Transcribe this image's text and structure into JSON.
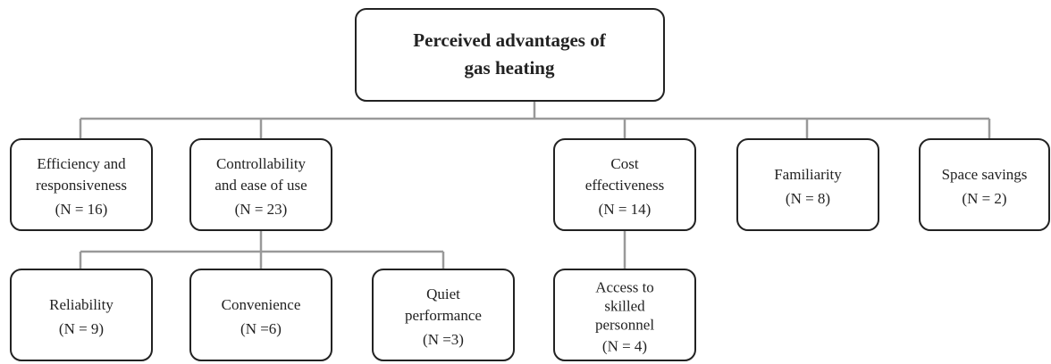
{
  "root": {
    "lines": [
      "Perceived advantages of",
      "gas heating"
    ]
  },
  "nodes": [
    {
      "lines": [
        "Efficiency and",
        "responsiveness"
      ],
      "count": "(N = 16)"
    },
    {
      "lines": [
        "Controllability",
        "and ease of use"
      ],
      "count": "(N = 23)"
    },
    {
      "lines": [
        "Cost",
        "effectiveness"
      ],
      "count": "(N = 14)"
    },
    {
      "lines": [
        "Familiarity"
      ],
      "count": "(N = 8)"
    },
    {
      "lines": [
        "Space savings"
      ],
      "count": "(N = 2)"
    },
    {
      "lines": [
        "Reliability"
      ],
      "count": "(N = 9)"
    },
    {
      "lines": [
        "Convenience"
      ],
      "count": "(N =6)"
    },
    {
      "lines": [
        "Quiet",
        "performance"
      ],
      "count": "(N =3)"
    },
    {
      "lines": [
        "Access to",
        "skilled",
        "personnel"
      ],
      "count": "(N = 4)"
    }
  ]
}
